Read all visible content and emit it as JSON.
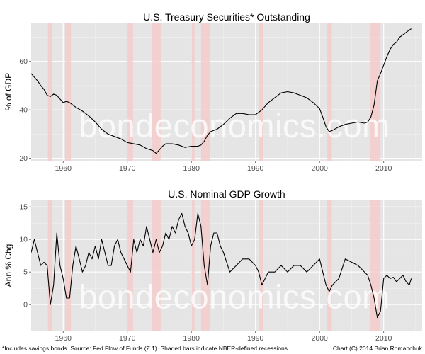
{
  "chart_data": [
    {
      "type": "line",
      "title": "U.S. Treasury Securities* Outstanding",
      "xlabel": "",
      "ylabel": "% of GDP",
      "xlim": [
        1955,
        2016
      ],
      "ylim": [
        19,
        76
      ],
      "x_ticks": [
        1960,
        1970,
        1980,
        1990,
        2000,
        2010
      ],
      "y_ticks": [
        20,
        40,
        60
      ],
      "watermark": "bondeconomics.com",
      "series": [
        {
          "name": "Treasury securities outstanding (% of GDP)",
          "x": [
            1955.0,
            1955.5,
            1956.0,
            1956.5,
            1957.0,
            1957.5,
            1958.0,
            1958.5,
            1959.0,
            1959.5,
            1960.0,
            1960.5,
            1961.0,
            1962.0,
            1963.0,
            1964.0,
            1965.0,
            1966.0,
            1967.0,
            1968.0,
            1969.0,
            1970.0,
            1971.0,
            1972.0,
            1973.0,
            1974.0,
            1974.5,
            1975.0,
            1975.5,
            1976.0,
            1977.0,
            1978.0,
            1979.0,
            1980.0,
            1981.0,
            1981.5,
            1982.0,
            1982.5,
            1983.0,
            1984.0,
            1985.0,
            1986.0,
            1987.0,
            1988.0,
            1989.0,
            1990.0,
            1991.0,
            1992.0,
            1993.0,
            1994.0,
            1995.0,
            1996.0,
            1997.0,
            1998.0,
            1999.0,
            2000.0,
            2000.5,
            2001.0,
            2001.5,
            2002.0,
            2003.0,
            2004.0,
            2005.0,
            2006.0,
            2007.0,
            2007.5,
            2008.0,
            2008.5,
            2009.0,
            2009.5,
            2010.0,
            2010.5,
            2011.0,
            2011.5,
            2012.0,
            2012.5,
            2013.0,
            2013.5,
            2014.0,
            2014.3
          ],
          "values": [
            55,
            53.5,
            52,
            50,
            48.5,
            46,
            45.5,
            46.5,
            46,
            44.5,
            43,
            43.5,
            43,
            41,
            39.5,
            37.5,
            35,
            32,
            30,
            29,
            28,
            26.5,
            26,
            25.5,
            24,
            23.2,
            22,
            23.5,
            25,
            26,
            26,
            25.5,
            24.5,
            25,
            25,
            25.5,
            27,
            29.5,
            31,
            32,
            34,
            36.5,
            38.5,
            38.5,
            38,
            38,
            40,
            43,
            45,
            47,
            47.5,
            47,
            46,
            45,
            43,
            40.5,
            37,
            33,
            31,
            31.5,
            33,
            34,
            34.5,
            35,
            34.5,
            35,
            37,
            42,
            52,
            55,
            58.5,
            62,
            65,
            67,
            68,
            70,
            71,
            72,
            73,
            73.5
          ]
        }
      ],
      "recessions": [
        [
          1957.6,
          1958.3
        ],
        [
          1960.3,
          1961.2
        ],
        [
          1969.9,
          1970.9
        ],
        [
          1973.9,
          1975.2
        ],
        [
          1980.0,
          1980.5
        ],
        [
          1981.5,
          1982.9
        ],
        [
          1990.6,
          1991.2
        ],
        [
          2001.2,
          2001.9
        ],
        [
          2007.9,
          2009.5
        ]
      ]
    },
    {
      "type": "line",
      "title": "U.S. Nominal GDP Growth",
      "xlabel": "",
      "ylabel": "Ann % Chg",
      "xlim": [
        1955,
        2016
      ],
      "ylim": [
        -4,
        16
      ],
      "x_ticks": [
        1960,
        1970,
        1980,
        1990,
        2000,
        2010
      ],
      "y_ticks": [
        0,
        5,
        10,
        15
      ],
      "watermark": "bondeconomics.com",
      "series": [
        {
          "name": "Nominal GDP growth (annual % change)",
          "x": [
            1955.0,
            1955.5,
            1956.0,
            1956.5,
            1957.0,
            1957.5,
            1958.0,
            1958.5,
            1959.0,
            1959.5,
            1960.0,
            1960.5,
            1961.0,
            1961.5,
            1962.0,
            1962.5,
            1963.0,
            1963.5,
            1964.0,
            1964.5,
            1965.0,
            1965.5,
            1966.0,
            1966.5,
            1967.0,
            1967.5,
            1968.0,
            1968.5,
            1969.0,
            1969.5,
            1970.0,
            1970.5,
            1971.0,
            1971.5,
            1972.0,
            1972.5,
            1973.0,
            1973.5,
            1974.0,
            1974.5,
            1975.0,
            1975.5,
            1976.0,
            1976.5,
            1977.0,
            1977.5,
            1978.0,
            1978.5,
            1979.0,
            1979.5,
            1980.0,
            1980.5,
            1981.0,
            1981.5,
            1982.0,
            1982.5,
            1983.0,
            1983.5,
            1984.0,
            1984.5,
            1985.0,
            1986.0,
            1987.0,
            1988.0,
            1989.0,
            1990.0,
            1990.5,
            1991.0,
            1991.5,
            1992.0,
            1993.0,
            1994.0,
            1995.0,
            1996.0,
            1997.0,
            1998.0,
            1999.0,
            2000.0,
            2000.5,
            2001.0,
            2001.5,
            2002.0,
            2003.0,
            2004.0,
            2005.0,
            2006.0,
            2007.0,
            2007.5,
            2008.0,
            2008.5,
            2009.0,
            2009.5,
            2010.0,
            2010.5,
            2011.0,
            2011.5,
            2012.0,
            2012.5,
            2013.0,
            2013.5,
            2014.0,
            2014.3
          ],
          "values": [
            8,
            10,
            8,
            6,
            6.5,
            6,
            0,
            3,
            11,
            6,
            4,
            1,
            1,
            6,
            9,
            7,
            5,
            6,
            8,
            7,
            9,
            7,
            10,
            8,
            6,
            6,
            9,
            10,
            8,
            7,
            6,
            5,
            10,
            8,
            10,
            9,
            12,
            10,
            8,
            10,
            8,
            9,
            11,
            10,
            12,
            11,
            13,
            14,
            12,
            11,
            9,
            10,
            14,
            12,
            6,
            3,
            9,
            11,
            11,
            9,
            8,
            5,
            6,
            7,
            7,
            6,
            5,
            3,
            4,
            5,
            5,
            6,
            5,
            6,
            6,
            5,
            6,
            7,
            5,
            3,
            2,
            3,
            4,
            7,
            6.5,
            6,
            5,
            4.5,
            3,
            1,
            -2,
            -1,
            4,
            4.5,
            4,
            4.2,
            3.5,
            4,
            4.5,
            3.5,
            3,
            4
          ]
        }
      ],
      "recessions": [
        [
          1957.6,
          1958.3
        ],
        [
          1960.3,
          1961.2
        ],
        [
          1969.9,
          1970.9
        ],
        [
          1973.9,
          1975.2
        ],
        [
          1980.0,
          1980.5
        ],
        [
          1981.5,
          1982.9
        ],
        [
          1990.6,
          1991.2
        ],
        [
          2001.2,
          2001.9
        ],
        [
          2007.9,
          2009.5
        ]
      ]
    }
  ],
  "footnote_left": "*Includes savings bonds. Source: Fed Flow of Funds (Z.1). Shaded bars indicate NBER-defined recessions.",
  "footnote_right": "Chart (C) 2014 Brian Romanchuk"
}
